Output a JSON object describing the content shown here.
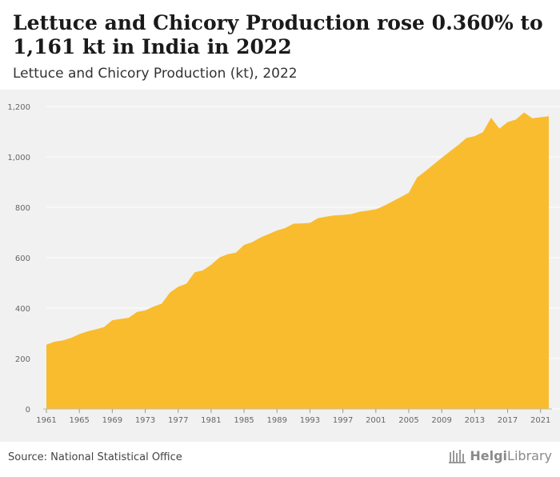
{
  "header": {
    "title": "Lettuce and Chicory Production rose 0.360% to 1,161 kt in India in 2022",
    "subtitle": "Lettuce and Chicory Production (kt), 2022"
  },
  "footer": {
    "source": "Source: National Statistical Office",
    "logo_bold": "Helgi",
    "logo_light": "Library"
  },
  "colors": {
    "area_fill": "#f9bc2f",
    "plot_background": "#f1f1f1",
    "grid": "#ffffff"
  },
  "chart_data": {
    "type": "area",
    "title": "Lettuce and Chicory Production (kt), 2022",
    "xlabel": "",
    "ylabel": "",
    "grid": true,
    "xlim": [
      1961,
      2022
    ],
    "ylim": [
      0,
      1200
    ],
    "y_ticks": [
      0,
      200,
      400,
      600,
      800,
      1000,
      1200
    ],
    "y_tick_labels": [
      "0",
      "200",
      "400",
      "600",
      "800",
      "1,000",
      "1,200"
    ],
    "x_ticks": [
      1961,
      1965,
      1969,
      1973,
      1977,
      1981,
      1985,
      1989,
      1993,
      1997,
      2001,
      2005,
      2009,
      2013,
      2017,
      2021
    ],
    "x": [
      1961,
      1962,
      1963,
      1964,
      1965,
      1966,
      1967,
      1968,
      1969,
      1970,
      1971,
      1972,
      1973,
      1974,
      1975,
      1976,
      1977,
      1978,
      1979,
      1980,
      1981,
      1982,
      1983,
      1984,
      1985,
      1986,
      1987,
      1988,
      1989,
      1990,
      1991,
      1992,
      1993,
      1994,
      1995,
      1996,
      1997,
      1998,
      1999,
      2000,
      2001,
      2002,
      2003,
      2004,
      2005,
      2006,
      2007,
      2008,
      2009,
      2010,
      2011,
      2012,
      2013,
      2014,
      2015,
      2016,
      2017,
      2018,
      2019,
      2020,
      2021,
      2022
    ],
    "series": [
      {
        "values": [
          255,
          267,
          272,
          282,
          297,
          308,
          316,
          325,
          352,
          357,
          362,
          385,
          391,
          406,
          418,
          462,
          485,
          497,
          542,
          550,
          572,
          601,
          614,
          620,
          651,
          662,
          680,
          694,
          708,
          718,
          735,
          736,
          738,
          757,
          763,
          768,
          770,
          773,
          782,
          787,
          792,
          806,
          823,
          840,
          858,
          918,
          943,
          970,
          996,
          1022,
          1047,
          1075,
          1082,
          1098,
          1155,
          1112,
          1138,
          1148,
          1176,
          1153,
          1157,
          1161
        ]
      }
    ]
  }
}
